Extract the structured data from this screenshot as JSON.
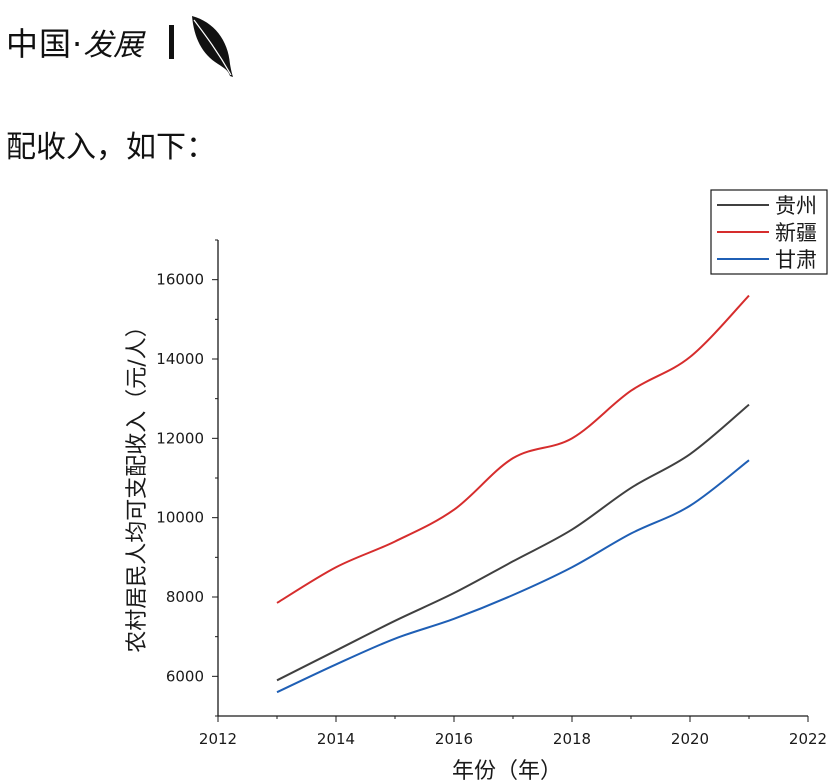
{
  "header": {
    "brand": "中国·",
    "brand_italic": "发展"
  },
  "body_text": "配收入，如下：",
  "chart_data": {
    "type": "line",
    "xlabel": "年份（年）",
    "ylabel": "农村居民人均可支配收入（元/人）",
    "xlim": [
      2012,
      2022
    ],
    "ylim": [
      5000,
      17000
    ],
    "x_ticks": [
      2012,
      2014,
      2016,
      2018,
      2020,
      2022
    ],
    "y_ticks": [
      6000,
      8000,
      10000,
      12000,
      14000,
      16000
    ],
    "grid": false,
    "legend_position": "top-right",
    "x": [
      2013,
      2014,
      2015,
      2016,
      2017,
      2018,
      2019,
      2020,
      2021
    ],
    "series": [
      {
        "name": "贵州",
        "color": "#404040",
        "values": [
          5900,
          6650,
          7400,
          8100,
          8900,
          9700,
          10750,
          11600,
          12850
        ]
      },
      {
        "name": "新疆",
        "color": "#d62d2d",
        "values": [
          7850,
          8750,
          9400,
          10200,
          11500,
          12000,
          13200,
          14050,
          15600
        ]
      },
      {
        "name": "甘肃",
        "color": "#1f5fb5",
        "values": [
          5600,
          6300,
          6950,
          7450,
          8050,
          8750,
          9600,
          10300,
          11450
        ]
      }
    ]
  }
}
